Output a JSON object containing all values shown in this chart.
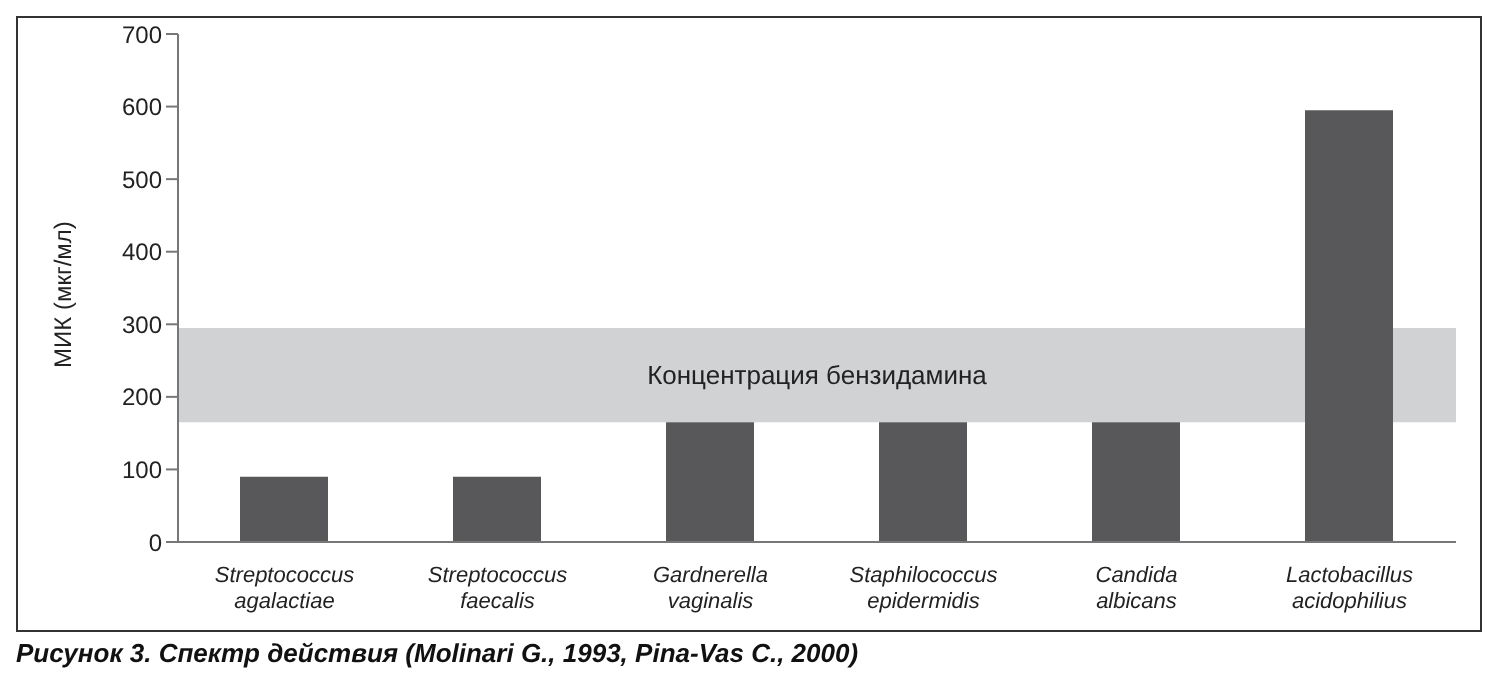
{
  "chart_data": {
    "type": "bar",
    "ylabel": "МИК (мкг/мл)",
    "categories": [
      "Streptococcus agalactiae",
      "Streptococcus faecalis",
      "Gardnerella vaginalis",
      "Staphilococcus epidermidis",
      "Candida albicans",
      "Lactobacillus acidophilius"
    ],
    "values": [
      90,
      90,
      165,
      165,
      165,
      595
    ],
    "color": "#58585a",
    "ylim": [
      0,
      700
    ],
    "yticks": [
      0,
      100,
      200,
      300,
      400,
      500,
      600,
      700
    ],
    "grid": false,
    "legend": false,
    "bands": [
      {
        "axis": "y",
        "from": 165,
        "to": 295,
        "label": "Концентрация бензидамина",
        "color": "#d1d2d4"
      }
    ],
    "annotations": [
      "Рисунок 3. Спектр действия (Molinari G., 1993, Pina-Vas C., 2000)"
    ]
  }
}
